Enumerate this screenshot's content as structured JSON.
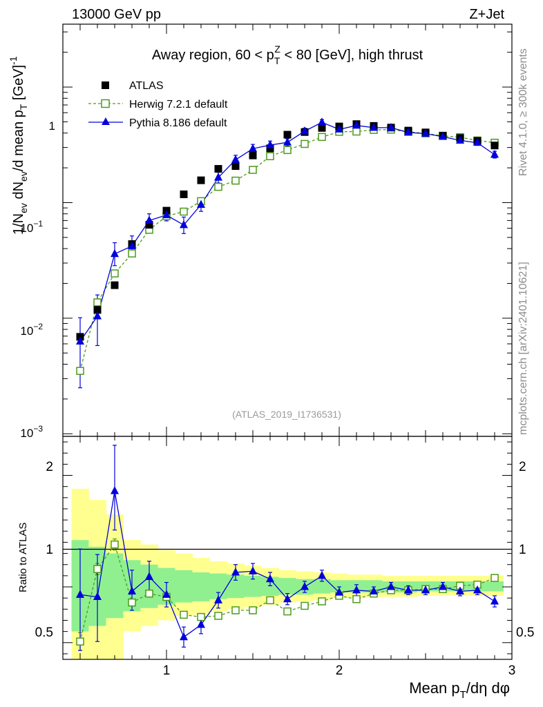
{
  "header": {
    "left": "13000 GeV pp",
    "right": "Z+Jet"
  },
  "side": {
    "rivet": "Rivet 4.1.0, ≥ 300k events",
    "mcplots": "mcplots.cern.ch [arXiv:2401.10621]"
  },
  "colors": {
    "atlas": "#000000",
    "herwig": "#4a9a1a",
    "pythia": "#0000dd",
    "band_inner": "#90f090",
    "band_outer": "#ffff90"
  },
  "chart_data": [
    {
      "type": "scatter",
      "title": "Away region, 60 < p_T^Z < 80 [GeV], high thrust",
      "title_parts": {
        "prefix": "Away region, 60 < p",
        "sub": "T",
        "sup": "Z",
        "suffix": " < 80 [GeV], high thrust"
      },
      "watermark": "(ATLAS_2019_I1736531)",
      "ylabel": "1/N_ev dN_ev/d mean p_T [GeV]^-1",
      "ylabel_parts": {
        "a": "1/N",
        "a_sub": "ev",
        "b": " dN",
        "b_sub": "ev",
        "c": "/d mean p",
        "c_sub": "T",
        "d": " [GeV]",
        "d_sup": "-1"
      },
      "yscale": "log",
      "ylim": [
        0.00095,
        3.5
      ],
      "xlim": [
        0.4,
        3.0
      ],
      "y_ticks": [
        0.001,
        0.01,
        0.1,
        1
      ],
      "y_tick_labels": [
        {
          "base": "10",
          "exp": "−3"
        },
        {
          "base": "10",
          "exp": "−2"
        },
        {
          "base": "10",
          "exp": "−1"
        },
        {
          "base": "1",
          "exp": ""
        }
      ],
      "legend_position": "top-left",
      "x": [
        0.5,
        0.6,
        0.7,
        0.8,
        0.9,
        1.0,
        1.1,
        1.2,
        1.3,
        1.4,
        1.5,
        1.6,
        1.7,
        1.8,
        1.9,
        2.0,
        2.1,
        2.2,
        2.3,
        2.4,
        2.5,
        2.6,
        2.7,
        2.8,
        2.9
      ],
      "series": [
        {
          "name": "ATLAS",
          "marker": "square-filled",
          "values": [
            0.0069,
            0.0118,
            0.0193,
            0.0438,
            0.0643,
            0.0852,
            0.118,
            0.156,
            0.196,
            0.207,
            0.256,
            0.295,
            0.387,
            0.408,
            0.443,
            0.456,
            0.478,
            0.461,
            0.446,
            0.42,
            0.405,
            0.38,
            0.362,
            0.342,
            0.312
          ]
        },
        {
          "name": "Herwig 7.2.1 default",
          "marker": "square-open",
          "line": "dashed",
          "values": [
            0.0035,
            0.0137,
            0.0244,
            0.0363,
            0.0582,
            0.0763,
            0.0836,
            0.103,
            0.137,
            0.155,
            0.192,
            0.252,
            0.285,
            0.322,
            0.37,
            0.41,
            0.412,
            0.426,
            0.428,
            0.41,
            0.398,
            0.378,
            0.368,
            0.345,
            0.33
          ]
        },
        {
          "name": "Pythia 8.186 default",
          "marker": "triangle-filled",
          "line": "solid",
          "values": [
            0.0063,
            0.0104,
            0.036,
            0.042,
            0.07,
            0.078,
            0.064,
            0.096,
            0.165,
            0.235,
            0.293,
            0.315,
            0.332,
            0.415,
            0.495,
            0.43,
            0.465,
            0.445,
            0.445,
            0.405,
            0.395,
            0.372,
            0.345,
            0.33,
            0.26
          ],
          "err_up": [
            0.0038,
            0.0055,
            0.009,
            0.0095,
            0.01,
            0.009,
            0.011,
            0.013,
            0.018,
            0.022,
            0.026,
            0.026,
            0.025,
            0.026,
            0.028,
            0.025,
            0.025,
            0.023,
            0.023,
            0.021,
            0.02,
            0.019,
            0.019,
            0.018,
            0.018
          ],
          "err_dn": [
            0.0038,
            0.0046,
            0.0075,
            0.008,
            0.009,
            0.0085,
            0.01,
            0.012,
            0.017,
            0.021,
            0.025,
            0.025,
            0.024,
            0.025,
            0.027,
            0.024,
            0.024,
            0.022,
            0.022,
            0.02,
            0.019,
            0.018,
            0.018,
            0.017,
            0.017
          ]
        }
      ]
    },
    {
      "type": "scatter",
      "ylabel": "Ratio to ATLAS",
      "xlabel": "Mean p_T/dη dφ",
      "xlabel_parts": {
        "a": "Mean p",
        "sub": "T",
        "b": "/dη dφ"
      },
      "ylim": [
        0.35,
        2.35
      ],
      "xlim": [
        0.4,
        3.0
      ],
      "x_ticks": [
        1,
        2,
        3
      ],
      "x_tick_labels": [
        "1",
        "2",
        "3"
      ],
      "y_ticks": [
        0.5,
        1,
        2
      ],
      "y_tick_labels": [
        "0.5",
        "1",
        "2"
      ],
      "reference_line": 1,
      "band_edges": [
        0.45,
        0.55,
        0.65,
        0.75,
        0.85,
        0.95,
        1.05,
        1.15,
        1.25,
        1.35,
        1.45,
        1.55,
        1.65,
        1.75,
        1.85,
        1.95,
        2.05,
        2.15,
        2.25,
        2.35,
        2.45,
        2.55,
        2.65,
        2.75,
        2.85,
        2.95
      ],
      "band_inner_low": [
        0.6,
        0.65,
        0.72,
        0.78,
        0.81,
        0.84,
        0.86,
        0.87,
        0.89,
        0.9,
        0.91,
        0.92,
        0.93,
        0.93,
        0.94,
        0.95,
        0.95,
        0.95,
        0.95,
        0.95,
        0.96,
        0.96,
        0.96,
        0.96,
        0.96
      ],
      "band_inner_high": [
        1.42,
        1.36,
        1.3,
        1.24,
        1.2,
        1.17,
        1.15,
        1.13,
        1.12,
        1.11,
        1.1,
        1.09,
        1.08,
        1.07,
        1.07,
        1.06,
        1.06,
        1.06,
        1.05,
        1.05,
        1.05,
        1.05,
        1.05,
        1.05,
        1.05
      ],
      "band_outer_low": [
        0.2,
        0.3,
        0.3,
        0.6,
        0.65,
        0.7,
        0.74,
        0.75,
        0.78,
        0.8,
        0.82,
        0.84,
        0.86,
        0.87,
        0.88,
        0.9,
        0.9,
        0.91,
        0.91,
        0.91,
        0.92,
        0.92,
        0.92,
        0.92,
        0.92
      ],
      "band_outer_high": [
        1.88,
        1.78,
        1.65,
        1.42,
        1.38,
        1.33,
        1.3,
        1.26,
        1.23,
        1.21,
        1.19,
        1.17,
        1.15,
        1.14,
        1.13,
        1.12,
        1.11,
        1.11,
        1.1,
        1.1,
        1.1,
        1.1,
        1.1,
        1.1,
        1.1
      ],
      "x": [
        0.5,
        0.6,
        0.7,
        0.8,
        0.9,
        1.0,
        1.1,
        1.2,
        1.3,
        1.4,
        1.5,
        1.6,
        1.7,
        1.8,
        1.9,
        2.0,
        2.1,
        2.2,
        2.3,
        2.4,
        2.5,
        2.6,
        2.7,
        2.8,
        2.9
      ],
      "series": [
        {
          "name": "Herwig 7.2.1 default",
          "marker": "square-open",
          "line": "dashed",
          "values": [
            0.51,
            1.16,
            1.38,
            0.86,
            0.94,
            0.91,
            0.75,
            0.73,
            0.74,
            0.79,
            0.79,
            0.88,
            0.78,
            0.83,
            0.87,
            0.92,
            0.89,
            0.94,
            0.97,
            0.97,
            0.98,
            0.98,
            1.01,
            1.02,
            1.08
          ],
          "err_up": [
            0.08,
            0.05,
            0.05,
            0.03,
            0.03,
            0.02,
            0.02,
            0.02,
            0.02,
            0.02,
            0.02,
            0.02,
            0.01,
            0.01,
            0.01,
            0.01,
            0.01,
            0.01,
            0.01,
            0.01,
            0.01,
            0.01,
            0.01,
            0.01,
            0.01
          ],
          "err_dn": [
            0.08,
            0.05,
            0.05,
            0.03,
            0.03,
            0.02,
            0.02,
            0.02,
            0.02,
            0.02,
            0.02,
            0.02,
            0.01,
            0.01,
            0.01,
            0.01,
            0.01,
            0.01,
            0.01,
            0.01,
            0.01,
            0.01,
            0.01,
            0.01,
            0.01
          ]
        },
        {
          "name": "Pythia 8.186 default",
          "marker": "triangle-filled",
          "line": "solid",
          "values": [
            0.93,
            0.91,
            1.86,
            0.96,
            1.09,
            0.93,
            0.55,
            0.66,
            0.88,
            1.13,
            1.14,
            1.07,
            0.89,
            1.0,
            1.1,
            0.95,
            0.97,
            0.96,
            1.0,
            0.97,
            0.97,
            1.0,
            0.96,
            0.97,
            0.87
          ],
          "err_up": [
            0.41,
            0.38,
            0.41,
            0.19,
            0.14,
            0.11,
            0.09,
            0.08,
            0.07,
            0.07,
            0.07,
            0.06,
            0.05,
            0.05,
            0.05,
            0.05,
            0.05,
            0.04,
            0.04,
            0.04,
            0.04,
            0.04,
            0.04,
            0.04,
            0.05
          ],
          "err_dn": [
            0.5,
            0.4,
            0.35,
            0.17,
            0.14,
            0.11,
            0.09,
            0.08,
            0.07,
            0.07,
            0.07,
            0.06,
            0.05,
            0.05,
            0.05,
            0.05,
            0.05,
            0.04,
            0.04,
            0.04,
            0.04,
            0.04,
            0.04,
            0.04,
            0.05
          ]
        }
      ]
    }
  ]
}
